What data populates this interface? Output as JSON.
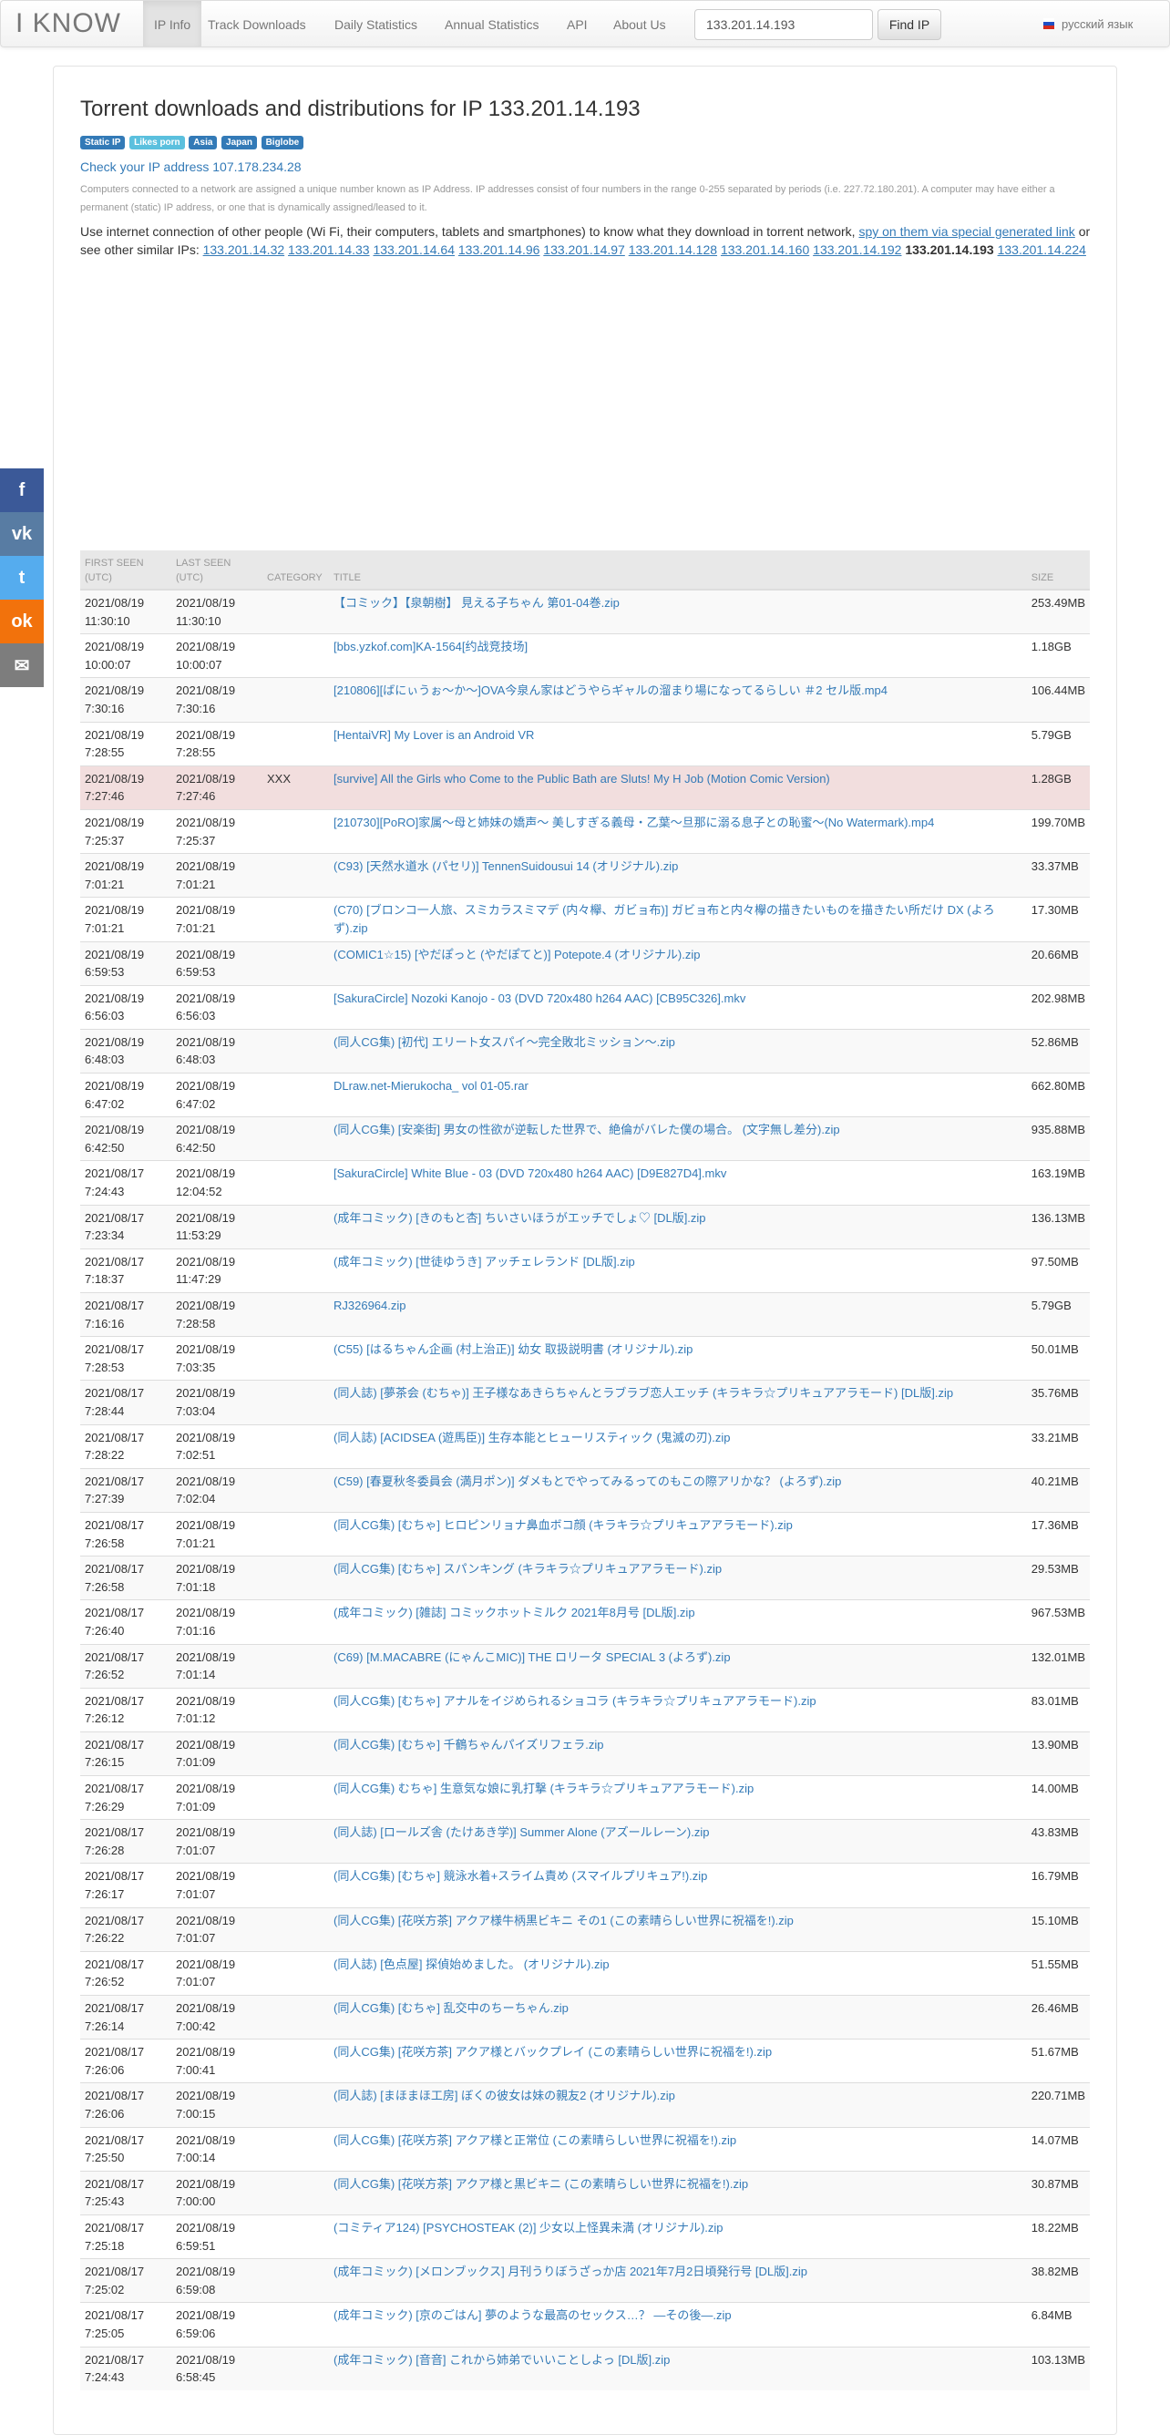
{
  "nav": {
    "brand": "I KNOW",
    "items": [
      "IP Info",
      "Track Downloads",
      "Daily Statistics",
      "Annual Statistics",
      "API",
      "About Us"
    ],
    "search_value": "133.201.14.193",
    "find_label": "Find IP",
    "language": "русский язык"
  },
  "page": {
    "title": "Torrent downloads and distributions for IP 133.201.14.193",
    "badges": [
      "Static IP",
      "Likes porn",
      "Asia",
      "Japan",
      "Biglobe"
    ],
    "check_link": "Check your IP address 107.178.234.28",
    "info": "Computers connected to a network are assigned a unique number known as IP Address. IP addresses consist of four numbers in the range 0-255 separated by periods (i.e. 227.72.180.201). A computer may have either a permanent (static) IP address, or one that is dynamically assigned/leased to it.",
    "use_text": "Use internet connection of other people (Wi Fi, their computers, tablets and smartphones) to know what they download in torrent network,",
    "spy_link": "spy on them via special generated link",
    "see_other": "or see other similar IPs:",
    "similar_ips": [
      "133.201.14.32",
      "133.201.14.33",
      "133.201.14.64",
      "133.201.14.96",
      "133.201.14.97",
      "133.201.14.128",
      "133.201.14.160",
      "133.201.14.192"
    ],
    "current_ip": "133.201.14.193",
    "last_ip": "133.201.14.224"
  },
  "share": {
    "icons": [
      "facebook-icon",
      "vk-icon",
      "twitter-icon",
      "odnoklassniki-icon",
      "email-icon"
    ],
    "colors": [
      "#3b5998",
      "#587ca3",
      "#55acee",
      "#f2720c",
      "#7d7d7d"
    ]
  },
  "table": {
    "headers": [
      "FIRST SEEN (UTC)",
      "LAST SEEN (UTC)",
      "CATEGORY",
      "TITLE",
      "SIZE"
    ],
    "rows": [
      [
        "2021/08/19 11:30:10",
        "2021/08/19 11:30:10",
        "",
        "【コミック】【泉朝樹】 見える子ちゃん 第01-04巻.zip",
        "253.49MB"
      ],
      [
        "2021/08/19 10:00:07",
        "2021/08/19 10:00:07",
        "",
        "[bbs.yzkof.com]KA-1564[约战竞技场]",
        "1.18GB"
      ],
      [
        "2021/08/19 7:30:16",
        "2021/08/19 7:30:16",
        "",
        "[210806][ばにぃうぉ～か～]OVA今泉ん家はどうやらギャルの溜まり場になってるらしい ＃2 セル版.mp4",
        "106.44MB"
      ],
      [
        "2021/08/19 7:28:55",
        "2021/08/19 7:28:55",
        "",
        "[HentaiVR] My Lover is an Android VR",
        "5.79GB"
      ],
      [
        "2021/08/19 7:27:46",
        "2021/08/19 7:27:46",
        "XXX",
        "[survive] All the Girls who Come to the Public Bath are Sluts! My H Job (Motion Comic Version)",
        "1.28GB"
      ],
      [
        "2021/08/19 7:25:37",
        "2021/08/19 7:25:37",
        "",
        "[210730][PoRO]家属～母と姉妹の嬌声～ 美しすぎる義母・乙葉～旦那に溺る息子との恥蜜～(No Watermark).mp4",
        "199.70MB"
      ],
      [
        "2021/08/19 7:01:21",
        "2021/08/19 7:01:21",
        "",
        "(C93) [天然水道水 (パセリ)] TennenSuidousui 14 (オリジナル).zip",
        "33.37MB"
      ],
      [
        "2021/08/19 7:01:21",
        "2021/08/19 7:01:21",
        "",
        "(C70) [ブロンコ一人旅、スミカラスミマデ (内々欅、ガビョ布)] ガビョ布と内々欅の描きたいものを描きたい所だけ DX (よろず).zip",
        "17.30MB"
      ],
      [
        "2021/08/19 6:59:53",
        "2021/08/19 6:59:53",
        "",
        "(COMIC1☆15) [やだぽっと (やだぽてと)] Potepote.4 (オリジナル).zip",
        "20.66MB"
      ],
      [
        "2021/08/19 6:56:03",
        "2021/08/19 6:56:03",
        "",
        "[SakuraCircle] Nozoki Kanojo - 03 (DVD 720x480 h264 AAC) [CB95C326].mkv",
        "202.98MB"
      ],
      [
        "2021/08/19 6:48:03",
        "2021/08/19 6:48:03",
        "",
        "(同人CG集) [初代] エリート女スパイ～完全敗北ミッション～.zip",
        "52.86MB"
      ],
      [
        "2021/08/19 6:47:02",
        "2021/08/19 6:47:02",
        "",
        "DLraw.net-Mierukocha_ vol 01-05.rar",
        "662.80MB"
      ],
      [
        "2021/08/19 6:42:50",
        "2021/08/19 6:42:50",
        "",
        "(同人CG集) [安楽街] 男女の性欲が逆転した世界で、絶倫がバレた僕の場合。 (文字無し差分).zip",
        "935.88MB"
      ],
      [
        "2021/08/17 7:24:43",
        "2021/08/19 12:04:52",
        "",
        "[SakuraCircle] White Blue - 03 (DVD 720x480 h264 AAC) [D9E827D4].mkv",
        "163.19MB"
      ],
      [
        "2021/08/17 7:23:34",
        "2021/08/19 11:53:29",
        "",
        "(成年コミック) [きのもと杏] ちいさいほうがエッチでしょ♡ [DL版].zip",
        "136.13MB"
      ],
      [
        "2021/08/17 7:18:37",
        "2021/08/19 11:47:29",
        "",
        "(成年コミック) [世徒ゆうき] アッチェレランド [DL版].zip",
        "97.50MB"
      ],
      [
        "2021/08/17 7:16:16",
        "2021/08/19 7:28:58",
        "",
        "RJ326964.zip",
        "5.79GB"
      ],
      [
        "2021/08/17 7:28:53",
        "2021/08/19 7:03:35",
        "",
        "(C55) [はるちゃん企画 (村上治正)] 幼女 取扱説明書 (オリジナル).zip",
        "50.01MB"
      ],
      [
        "2021/08/17 7:28:44",
        "2021/08/19 7:03:04",
        "",
        "(同人誌) [夢茶会 (むちゃ)] 王子様なあきらちゃんとラブラブ恋人エッチ (キラキラ☆プリキュアアラモード) [DL版].zip",
        "35.76MB"
      ],
      [
        "2021/08/17 7:28:22",
        "2021/08/19 7:02:51",
        "",
        "(同人誌) [ACIDSEA (遊馬臣)] 生存本能とヒューリスティック (鬼滅の刃).zip",
        "33.21MB"
      ],
      [
        "2021/08/17 7:27:39",
        "2021/08/19 7:02:04",
        "",
        "(C59) [春夏秋冬委員会 (満月ポン)] ダメもとでやってみるってのもこの際アリかな？ (よろず).zip",
        "40.21MB"
      ],
      [
        "2021/08/17 7:26:58",
        "2021/08/19 7:01:21",
        "",
        "(同人CG集) [むちゃ] ヒロピンリョナ鼻血ボコ顔 (キラキラ☆プリキュアアラモード).zip",
        "17.36MB"
      ],
      [
        "2021/08/17 7:26:58",
        "2021/08/19 7:01:18",
        "",
        "(同人CG集) [むちゃ] スパンキング (キラキラ☆プリキュアアラモード).zip",
        "29.53MB"
      ],
      [
        "2021/08/17 7:26:40",
        "2021/08/19 7:01:16",
        "",
        "(成年コミック) [雑誌] コミックホットミルク 2021年8月号 [DL版].zip",
        "967.53MB"
      ],
      [
        "2021/08/17 7:26:52",
        "2021/08/19 7:01:14",
        "",
        "(C69) [M.MACABRE (にゃんこMIC)] THE ロリータ SPECIAL 3 (よろず).zip",
        "132.01MB"
      ],
      [
        "2021/08/17 7:26:12",
        "2021/08/19 7:01:12",
        "",
        "(同人CG集) [むちゃ] アナルをイジめられるショコラ (キラキラ☆プリキュアアラモード).zip",
        "83.01MB"
      ],
      [
        "2021/08/17 7:26:15",
        "2021/08/19 7:01:09",
        "",
        "(同人CG集) [むちゃ] 千鶴ちゃんパイズリフェラ.zip",
        "13.90MB"
      ],
      [
        "2021/08/17 7:26:29",
        "2021/08/19 7:01:09",
        "",
        "(同人CG集) むちゃ] 生意気な娘に乳打撃 (キラキラ☆プリキュアアラモード).zip",
        "14.00MB"
      ],
      [
        "2021/08/17 7:26:28",
        "2021/08/19 7:01:07",
        "",
        "(同人誌) [ロールズ舎 (たけあき学)] Summer Alone (アズールレーン).zip",
        "43.83MB"
      ],
      [
        "2021/08/17 7:26:17",
        "2021/08/19 7:01:07",
        "",
        "(同人CG集) [むちゃ] 競泳水着+スライム責め (スマイルプリキュア!).zip",
        "16.79MB"
      ],
      [
        "2021/08/17 7:26:22",
        "2021/08/19 7:01:07",
        "",
        "(同人CG集) [花咲方茶] アクア様牛柄黒ビキニ その1 (この素晴らしい世界に祝福を!).zip",
        "15.10MB"
      ],
      [
        "2021/08/17 7:26:52",
        "2021/08/19 7:01:07",
        "",
        "(同人誌) [色点屋] 探偵始めました。 (オリジナル).zip",
        "51.55MB"
      ],
      [
        "2021/08/17 7:26:14",
        "2021/08/19 7:00:42",
        "",
        "(同人CG集) [むちゃ] 乱交中のちーちゃん.zip",
        "26.46MB"
      ],
      [
        "2021/08/17 7:26:06",
        "2021/08/19 7:00:41",
        "",
        "(同人CG集) [花咲方茶] アクア様とバックプレイ (この素晴らしい世界に祝福を!).zip",
        "51.67MB"
      ],
      [
        "2021/08/17 7:26:06",
        "2021/08/19 7:00:15",
        "",
        "(同人誌) [まほまほ工房] ぼくの彼女は妹の親友2 (オリジナル).zip",
        "220.71MB"
      ],
      [
        "2021/08/17 7:25:50",
        "2021/08/19 7:00:14",
        "",
        "(同人CG集) [花咲方茶] アクア様と正常位 (この素晴らしい世界に祝福を!).zip",
        "14.07MB"
      ],
      [
        "2021/08/17 7:25:43",
        "2021/08/19 7:00:00",
        "",
        "(同人CG集) [花咲方茶] アクア様と黒ビキニ (この素晴らしい世界に祝福を!).zip",
        "30.87MB"
      ],
      [
        "2021/08/17 7:25:18",
        "2021/08/19 6:59:51",
        "",
        "(コミティア124) [PSYCHOSTEAK (2)] 少女以上怪異未満 (オリジナル).zip",
        "18.22MB"
      ],
      [
        "2021/08/17 7:25:02",
        "2021/08/19 6:59:08",
        "",
        "(成年コミック) [メロンブックス] 月刊うりぼうざっか店 2021年7月2日頃発行号 [DL版].zip",
        "38.82MB"
      ],
      [
        "2021/08/17 7:25:05",
        "2021/08/19 6:59:06",
        "",
        "(成年コミック) [京のごはん] 夢のような最高のセックス…？ ―その後―.zip",
        "6.84MB"
      ],
      [
        "2021/08/17 7:24:43",
        "2021/08/19 6:58:45",
        "",
        "(成年コミック) [音音] これから姉弟でいいことしよっ [DL版].zip",
        "103.13MB"
      ]
    ]
  }
}
